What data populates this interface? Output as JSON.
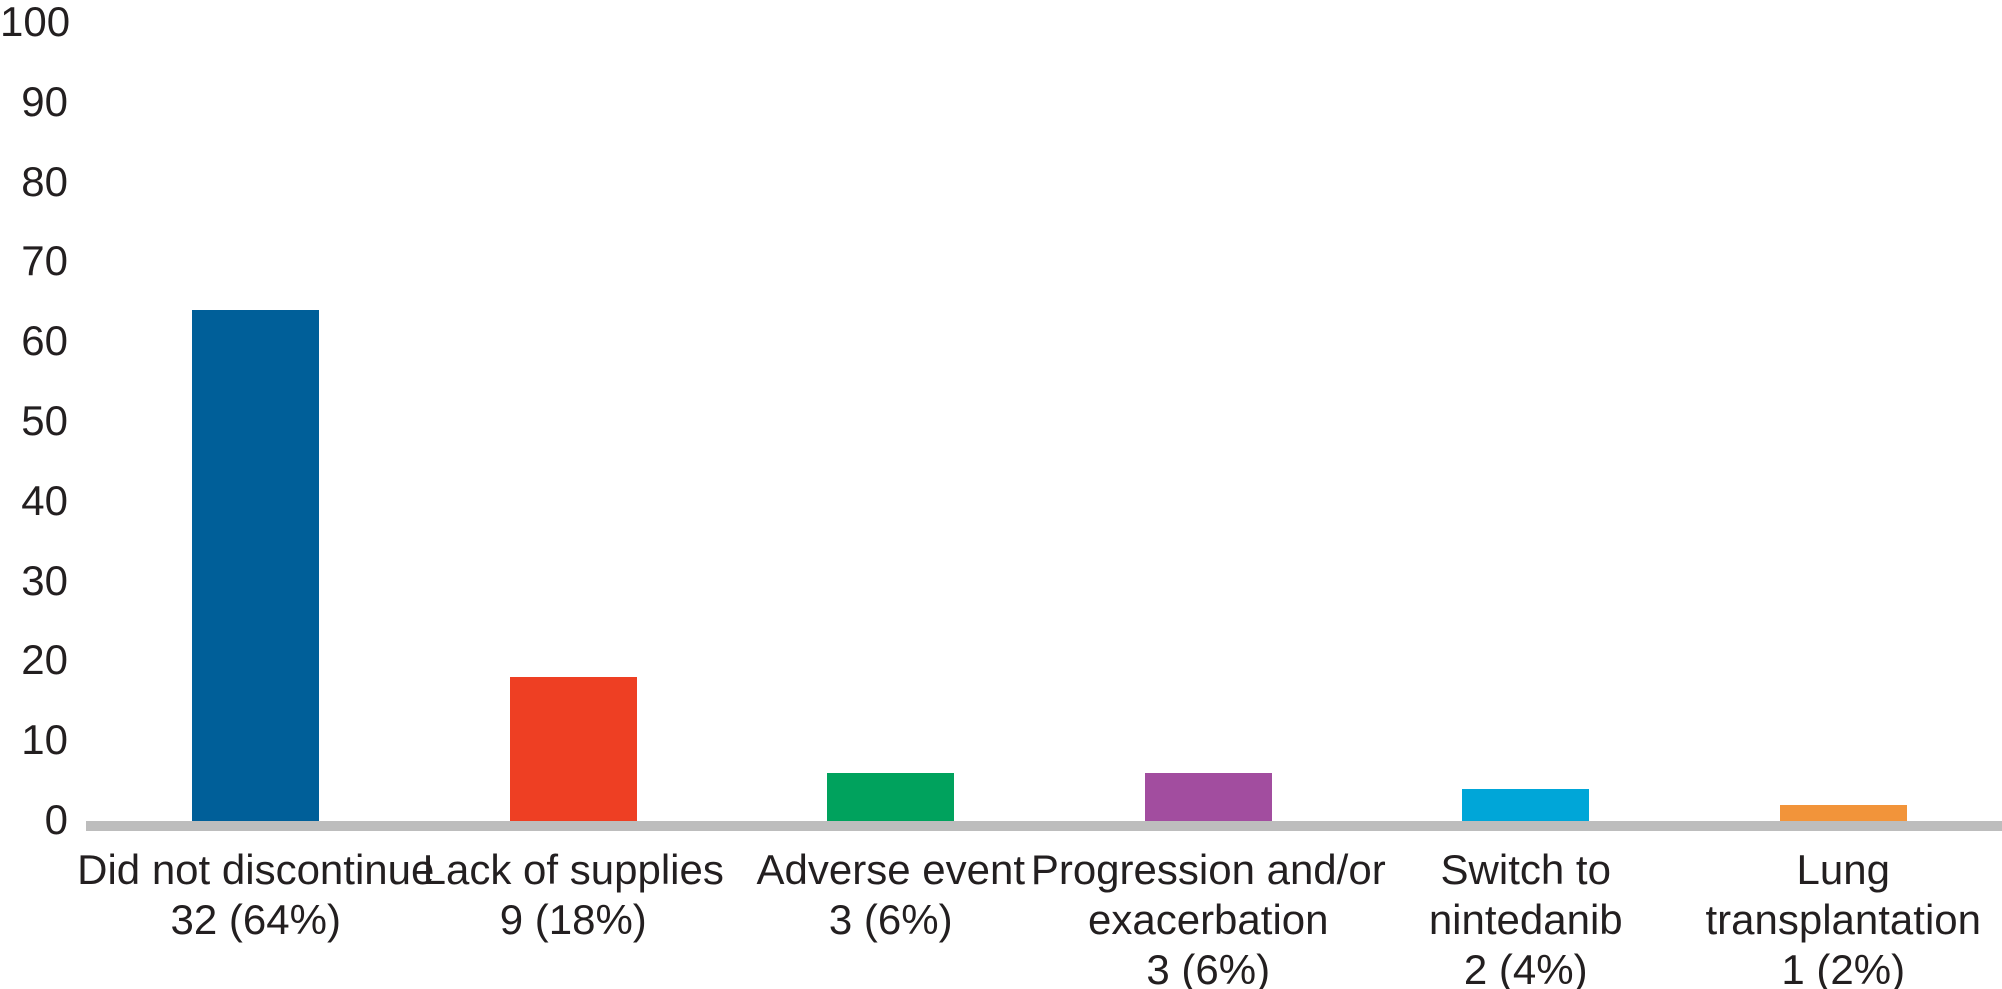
{
  "chart_data": {
    "type": "bar",
    "title": "",
    "xlabel": "",
    "ylabel": "",
    "ylim": [
      0,
      100
    ],
    "yticks": [
      100,
      90,
      80,
      70,
      60,
      50,
      40,
      30,
      20,
      10,
      0
    ],
    "grid": false,
    "legend_position": "none",
    "axis_line_color": "#BDBDBD",
    "text_color": "#231F20",
    "background_color": "#FFFFFF",
    "categories": [
      {
        "id": "did-not-discontinue",
        "label": "Did not discontinue",
        "label_lines": [
          "Did not discontinue",
          "32 (64%)"
        ],
        "count": 32,
        "percent": 64,
        "value": 64,
        "color": "#005F99"
      },
      {
        "id": "lack-of-supplies",
        "label": "Lack of supplies",
        "label_lines": [
          "Lack of supplies",
          "9 (18%)"
        ],
        "count": 9,
        "percent": 18,
        "value": 18,
        "color": "#EE3F23"
      },
      {
        "id": "adverse-event",
        "label": "Adverse event",
        "label_lines": [
          "Adverse event",
          "3 (6%)"
        ],
        "count": 3,
        "percent": 6,
        "value": 6,
        "color": "#00A25D"
      },
      {
        "id": "progression-exacerbation",
        "label": "Progression and/or exacerbation",
        "label_lines": [
          "Progression and/or",
          "exacerbation",
          "3 (6%)"
        ],
        "count": 3,
        "percent": 6,
        "value": 6,
        "color": "#A24D9F"
      },
      {
        "id": "switch-to-nintedanib",
        "label": "Switch to nintedanib",
        "label_lines": [
          "Switch to",
          "nintedanib",
          "2 (4%)"
        ],
        "count": 2,
        "percent": 4,
        "value": 4,
        "color": "#00A6D8"
      },
      {
        "id": "lung-transplantation",
        "label": "Lung transplantation",
        "label_lines": [
          "Lung",
          "transplantation",
          "1 (2%)"
        ],
        "count": 1,
        "percent": 2,
        "value": 2,
        "color": "#F2943A"
      }
    ]
  }
}
